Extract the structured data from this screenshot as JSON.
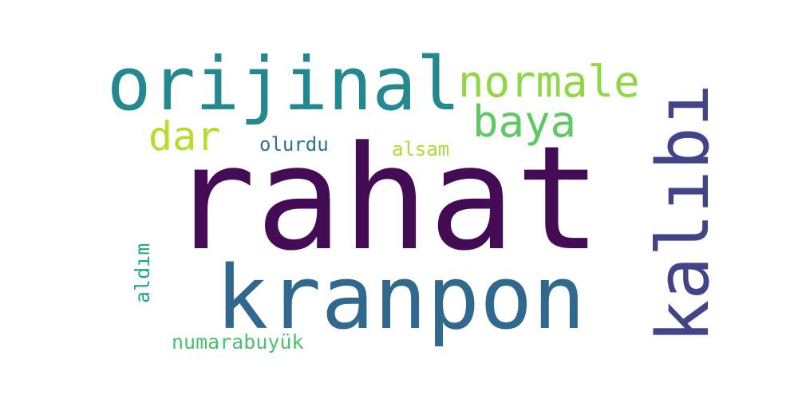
{
  "words": [
    {
      "text": "rahat",
      "color": "#440c55",
      "orientation": "horizontal"
    },
    {
      "text": "kranpon",
      "color": "#31688e",
      "orientation": "horizontal"
    },
    {
      "text": "orijinal",
      "color": "#23898e",
      "orientation": "horizontal"
    },
    {
      "text": "kalıbı",
      "color": "#414487",
      "orientation": "vertical"
    },
    {
      "text": "normale",
      "color": "#8fd744",
      "orientation": "horizontal"
    },
    {
      "text": "baya",
      "color": "#5ec962",
      "orientation": "horizontal"
    },
    {
      "text": "dar",
      "color": "#b5de2b",
      "orientation": "horizontal"
    },
    {
      "text": "olurdu",
      "color": "#2c728e",
      "orientation": "horizontal"
    },
    {
      "text": "alsam",
      "color": "#addc30",
      "orientation": "horizontal"
    },
    {
      "text": "aldım",
      "color": "#22a884",
      "orientation": "vertical"
    },
    {
      "text": "numarabuyük",
      "color": "#4ac16d",
      "orientation": "horizontal"
    }
  ]
}
